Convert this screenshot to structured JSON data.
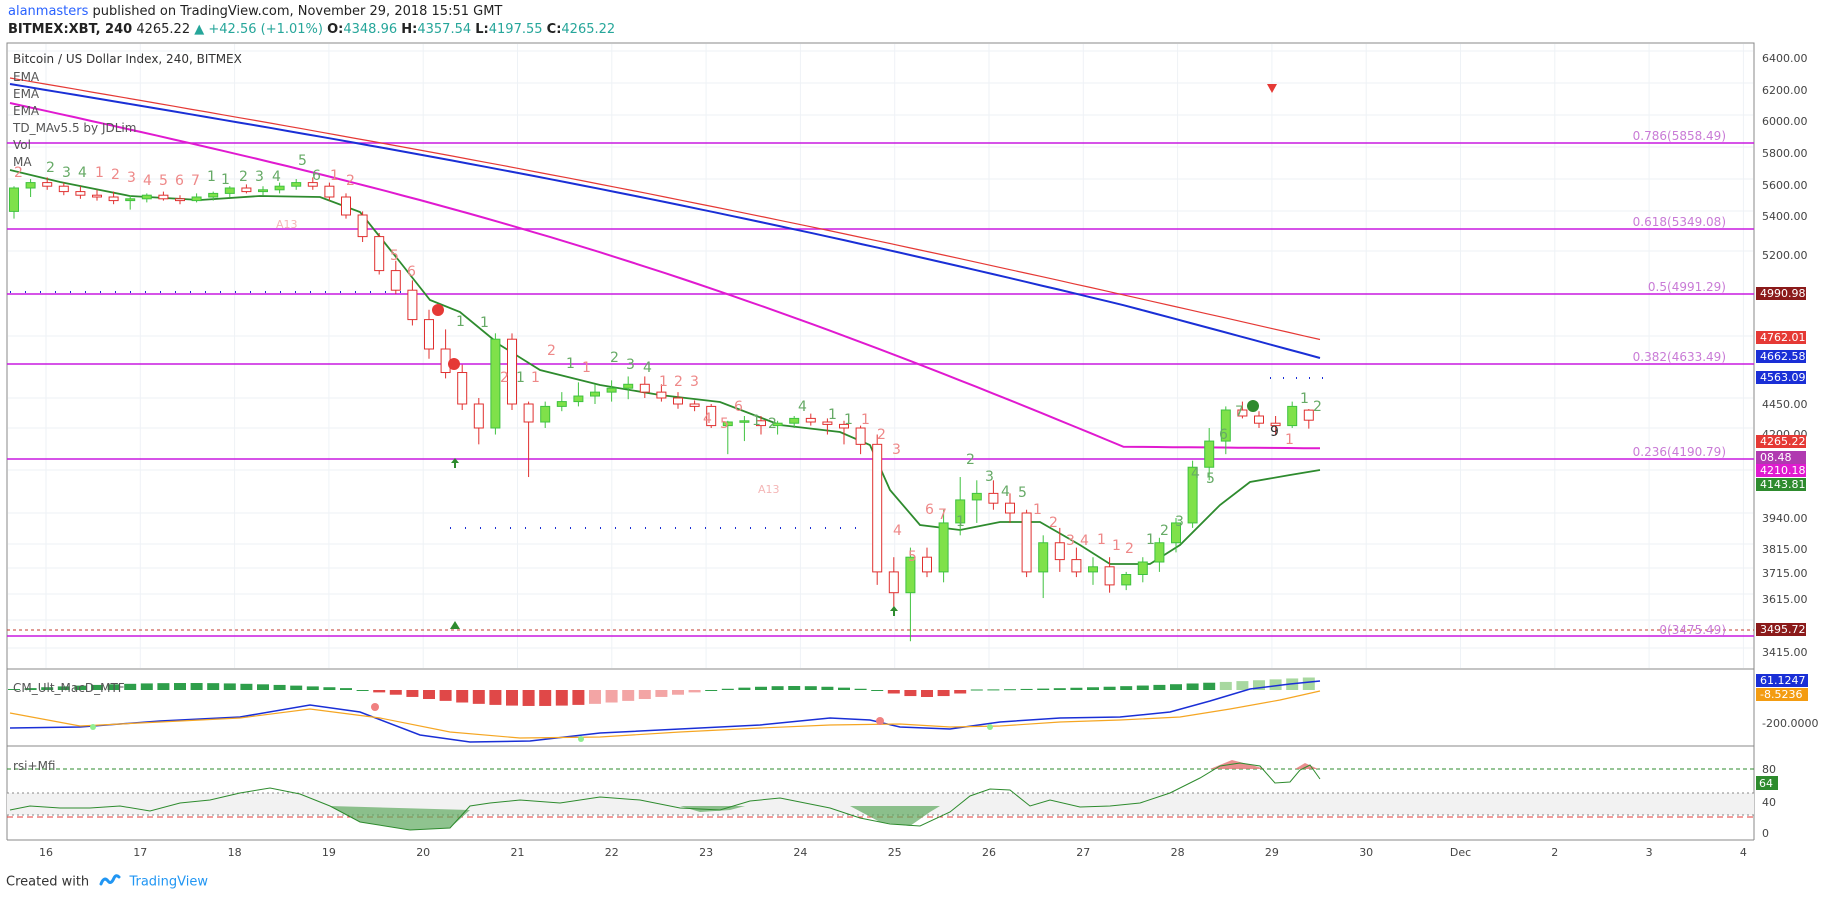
{
  "header": {
    "user": "alanmasters",
    "published_text": "published on TradingView.com, November 29, 2018 15:51 GMT",
    "symbol": "BITMEX:XBT, 240",
    "last": "4265.22",
    "change": "+42.56 (+1.01%)",
    "o_label": "O:",
    "o_val": "4348.96",
    "h_label": "H:",
    "h_val": "4357.54",
    "l_label": "L:",
    "l_val": "4197.55",
    "c_label": "C:",
    "c_val": "4265.22"
  },
  "legend": {
    "title": "Bitcoin / US Dollar Index, 240, BITMEX",
    "items": [
      "EMA",
      "EMA",
      "EMA",
      "TD_MAv5.5 by JDLim",
      "Vol",
      "MA"
    ]
  },
  "price_axis": {
    "labels": [
      "6400.00",
      "6200.00",
      "6000.00",
      "5800.00",
      "5600.00",
      "5400.00",
      "5200.00",
      "4450.00",
      "4200.00",
      "3940.00",
      "3815.00",
      "3715.00",
      "3615.00",
      "3415.00"
    ]
  },
  "fib_levels": [
    {
      "label": "0.786(5858.49)"
    },
    {
      "label": "0.618(5349.08)"
    },
    {
      "label": "0.5(4991.29)"
    },
    {
      "label": "0.382(4633.49)"
    },
    {
      "label": "0.236(4190.79)"
    },
    {
      "label": "0(3475.49)"
    }
  ],
  "price_badges": [
    {
      "text": "4990.98",
      "color": "#8b1a1a"
    },
    {
      "text": "4762.01",
      "color": "#e53935"
    },
    {
      "text": "4662.58",
      "color": "#1a2fd6"
    },
    {
      "text": "4563.09",
      "color": "#1a2fd6"
    },
    {
      "text": "4265.22",
      "color": "#e53935"
    },
    {
      "text": "08.48",
      "color": "#b03ab0"
    },
    {
      "text": "4210.18",
      "color": "#e01ad0"
    },
    {
      "text": "4143.81",
      "color": "#2e8b2e"
    },
    {
      "text": "3495.72",
      "color": "#8b1a1a"
    }
  ],
  "macd": {
    "title": "CM_Ult_MacD_MTF",
    "axis": [
      "-200.0000"
    ],
    "badges": [
      {
        "text": "61.1247",
        "color": "#1a2fd6"
      },
      {
        "text": "-8.5236",
        "color": "#f39c12"
      }
    ]
  },
  "rsi": {
    "title": "rsi+Mfi",
    "axis": [
      "80",
      "40",
      "0"
    ],
    "badge": {
      "text": "64",
      "color": "#2e8b2e"
    }
  },
  "time_axis": [
    "16",
    "17",
    "18",
    "19",
    "20",
    "21",
    "22",
    "23",
    "24",
    "25",
    "26",
    "27",
    "28",
    "29",
    "30",
    "Dec",
    "2",
    "3",
    "4"
  ],
  "td_annotations": {
    "a13_1": "A13",
    "a13_2": "A13",
    "setup_9": "9"
  },
  "footer": {
    "created_with": "Created with",
    "brand": "TradingView"
  },
  "chart_data": {
    "type": "candlestick",
    "title": "Bitcoin / US Dollar Index, 240, BITMEX",
    "x_ticks": [
      "16",
      "17",
      "18",
      "19",
      "20",
      "21",
      "22",
      "23",
      "24",
      "25",
      "26",
      "27",
      "28",
      "29",
      "30",
      "Dec",
      "2",
      "3",
      "4"
    ],
    "ylim": [
      3300,
      6500
    ],
    "candles": [
      [
        5420,
        5560,
        5380,
        5550
      ],
      [
        5550,
        5600,
        5500,
        5580
      ],
      [
        5580,
        5610,
        5540,
        5560
      ],
      [
        5560,
        5580,
        5510,
        5530
      ],
      [
        5530,
        5560,
        5490,
        5510
      ],
      [
        5510,
        5540,
        5480,
        5500
      ],
      [
        5500,
        5530,
        5460,
        5480
      ],
      [
        5480,
        5510,
        5430,
        5490
      ],
      [
        5490,
        5520,
        5470,
        5510
      ],
      [
        5510,
        5530,
        5480,
        5490
      ],
      [
        5490,
        5510,
        5460,
        5480
      ],
      [
        5480,
        5520,
        5470,
        5500
      ],
      [
        5500,
        5530,
        5480,
        5520
      ],
      [
        5520,
        5560,
        5500,
        5550
      ],
      [
        5550,
        5570,
        5520,
        5530
      ],
      [
        5530,
        5560,
        5510,
        5540
      ],
      [
        5540,
        5580,
        5520,
        5560
      ],
      [
        5560,
        5600,
        5540,
        5580
      ],
      [
        5580,
        5610,
        5540,
        5560
      ],
      [
        5560,
        5580,
        5480,
        5500
      ],
      [
        5500,
        5520,
        5380,
        5400
      ],
      [
        5400,
        5420,
        5250,
        5280
      ],
      [
        5280,
        5300,
        5080,
        5100
      ],
      [
        5100,
        5150,
        4980,
        5000
      ],
      [
        5000,
        5050,
        4820,
        4850
      ],
      [
        4850,
        4900,
        4650,
        4700
      ],
      [
        4700,
        4800,
        4550,
        4580
      ],
      [
        4580,
        4620,
        4350,
        4400
      ],
      [
        4400,
        4450,
        4150,
        4200
      ],
      [
        4200,
        4780,
        4180,
        4750
      ],
      [
        4750,
        4780,
        4350,
        4400
      ],
      [
        4400,
        4420,
        4050,
        4250
      ],
      [
        4250,
        4420,
        4200,
        4380
      ],
      [
        4380,
        4480,
        4340,
        4420
      ],
      [
        4420,
        4530,
        4380,
        4460
      ],
      [
        4460,
        4520,
        4400,
        4480
      ],
      [
        4480,
        4540,
        4420,
        4500
      ],
      [
        4500,
        4560,
        4440,
        4520
      ],
      [
        4520,
        4560,
        4450,
        4480
      ],
      [
        4480,
        4520,
        4420,
        4450
      ],
      [
        4450,
        4480,
        4360,
        4400
      ],
      [
        4400,
        4430,
        4340,
        4380
      ],
      [
        4380,
        4400,
        4200,
        4220
      ],
      [
        4220,
        4260,
        4120,
        4250
      ],
      [
        4250,
        4300,
        4160,
        4260
      ],
      [
        4260,
        4300,
        4180,
        4220
      ],
      [
        4220,
        4260,
        4180,
        4240
      ],
      [
        4240,
        4300,
        4200,
        4280
      ],
      [
        4280,
        4320,
        4220,
        4250
      ],
      [
        4250,
        4280,
        4180,
        4230
      ],
      [
        4230,
        4260,
        4150,
        4200
      ],
      [
        4200,
        4220,
        4120,
        4150
      ],
      [
        4150,
        4180,
        3650,
        3700
      ],
      [
        3700,
        3760,
        3560,
        3620
      ],
      [
        3620,
        3800,
        3440,
        3760
      ],
      [
        3760,
        3800,
        3680,
        3700
      ],
      [
        3700,
        3950,
        3660,
        3900
      ],
      [
        3900,
        4050,
        3850,
        3980
      ],
      [
        3980,
        4040,
        3900,
        4000
      ],
      [
        4000,
        4040,
        3950,
        3970
      ],
      [
        3970,
        4000,
        3900,
        3940
      ],
      [
        3940,
        3950,
        3680,
        3700
      ],
      [
        3700,
        3850,
        3600,
        3820
      ],
      [
        3820,
        3880,
        3700,
        3750
      ],
      [
        3750,
        3800,
        3680,
        3700
      ],
      [
        3700,
        3760,
        3650,
        3720
      ],
      [
        3720,
        3760,
        3620,
        3650
      ],
      [
        3650,
        3700,
        3630,
        3690
      ],
      [
        3690,
        3760,
        3660,
        3740
      ],
      [
        3740,
        3840,
        3700,
        3820
      ],
      [
        3820,
        3920,
        3780,
        3900
      ],
      [
        3900,
        4100,
        3880,
        4080
      ],
      [
        4080,
        4200,
        4040,
        4160
      ],
      [
        4160,
        4380,
        4120,
        4350
      ],
      [
        4350,
        4420,
        4280,
        4300
      ],
      [
        4300,
        4340,
        4200,
        4240
      ],
      [
        4240,
        4300,
        4180,
        4220
      ],
      [
        4220,
        4420,
        4200,
        4380
      ],
      [
        4349,
        4358,
        4198,
        4265
      ]
    ],
    "series": [
      {
        "type": "ema",
        "color": "#e53935",
        "values": [
          6280,
          4762
        ]
      },
      {
        "type": "ema",
        "color": "#1a2fd6",
        "values": [
          6230,
          4662
        ]
      },
      {
        "type": "ema",
        "color": "#e01ad0",
        "values": [
          6150,
          4210
        ]
      },
      {
        "type": "ma",
        "color": "#2e8b2e",
        "values": [
          5700,
          4143
        ]
      }
    ]
  }
}
